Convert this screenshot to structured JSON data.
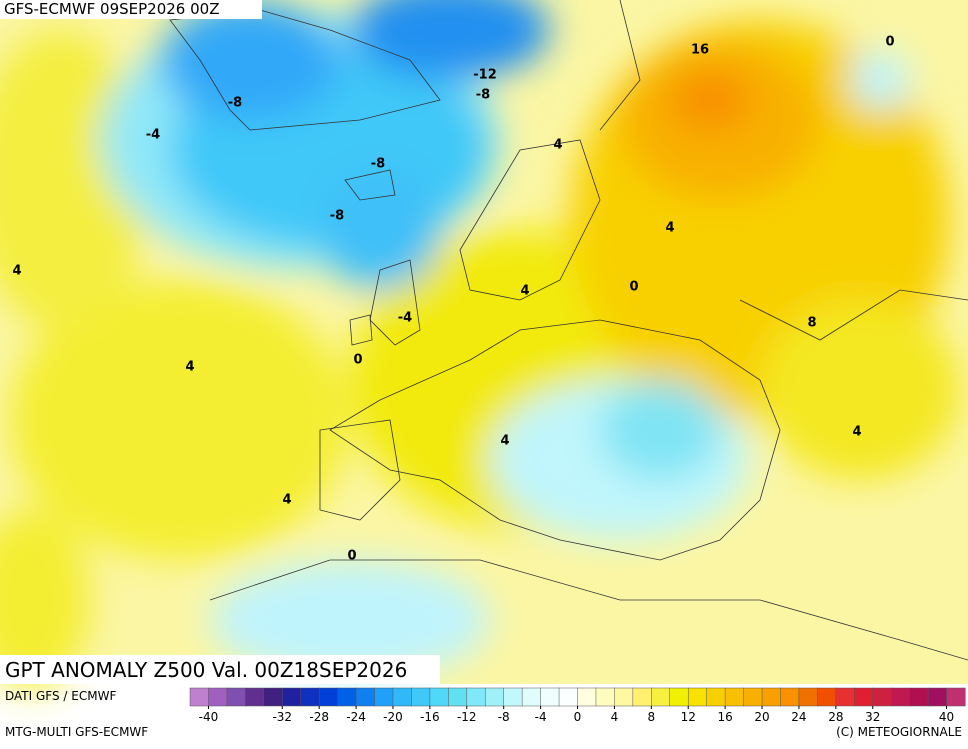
{
  "header": {
    "run": "GFS-ECMWF 09SEP2026 00Z"
  },
  "map": {
    "title": "GPT ANOMALY Z500 Val. 00Z18SEP2026",
    "contour_labels": [
      0,
      16,
      -12,
      -8,
      -8,
      -4,
      -8,
      -8,
      4,
      4,
      4,
      4,
      0,
      -4,
      8,
      0,
      4,
      4,
      4,
      4,
      0
    ]
  },
  "footer": {
    "source": "DATI GFS / ECMWF",
    "model": "MTG-MULTI GFS-ECMWF",
    "copyright": "(C) METEOGIORNALE"
  },
  "colorbar": {
    "range": [
      -42,
      42
    ],
    "colors": [
      "#c080d0",
      "#a060c0",
      "#8050b0",
      "#603090",
      "#402080",
      "#2020a0",
      "#1030c0",
      "#0040d8",
      "#0060e8",
      "#1080f0",
      "#20a0f8",
      "#30b8f8",
      "#40c8f8",
      "#50d8f8",
      "#60e0f0",
      "#80e8f8",
      "#a0f0f8",
      "#c0f8fc",
      "#e0fcfc",
      "#f0fffe",
      "#fcffff",
      "#ffffe0",
      "#fffcc0",
      "#fff8a0",
      "#fff070",
      "#f8f040",
      "#f0f000",
      "#f8e000",
      "#f8d000",
      "#f8c000",
      "#f8b000",
      "#f8a000",
      "#f89000",
      "#f07000",
      "#f05000",
      "#e83030",
      "#e02030",
      "#d02040",
      "#c01850",
      "#b01050",
      "#a01060",
      "#c03070"
    ],
    "ticks": [
      -40,
      -32,
      -28,
      -24,
      -20,
      -16,
      -12,
      -8,
      -4,
      0,
      4,
      8,
      12,
      16,
      20,
      24,
      28,
      32,
      40
    ]
  }
}
